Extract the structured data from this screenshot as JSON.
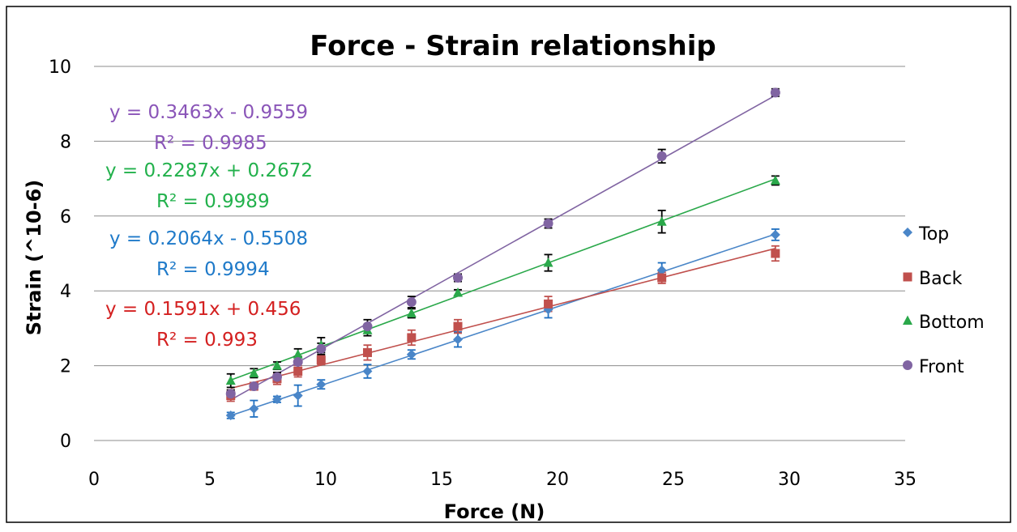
{
  "chart_data": {
    "type": "scatter",
    "title": "Force - Strain relationship",
    "xlabel": "Force (N)",
    "ylabel": "Strain (^10-6)",
    "xlim": [
      0,
      35
    ],
    "ylim": [
      0,
      10
    ],
    "x_ticks": [
      "0",
      "5",
      "10",
      "15",
      "20",
      "25",
      "30",
      "35"
    ],
    "y_ticks": [
      "0",
      "2",
      "4",
      "6",
      "8",
      "10"
    ],
    "grid": "horizontal",
    "legend_position": "right",
    "series": [
      {
        "name": "Top",
        "color": "#4a86c8",
        "marker": "diamond",
        "x": [
          5.9,
          6.9,
          7.9,
          8.8,
          9.8,
          11.8,
          13.7,
          15.7,
          19.6,
          24.5,
          29.4
        ],
        "y": [
          0.67,
          0.85,
          1.1,
          1.2,
          1.5,
          1.85,
          2.3,
          2.7,
          3.5,
          4.55,
          5.5
        ],
        "err": [
          0.08,
          0.22,
          0.08,
          0.28,
          0.12,
          0.18,
          0.12,
          0.2,
          0.22,
          0.2,
          0.15
        ],
        "trend": {
          "slope": 0.2064,
          "intercept": -0.5508
        },
        "equation": "y = 0.2064x - 0.5508",
        "r2": "R² = 0.9994"
      },
      {
        "name": "Back",
        "color": "#c0504d",
        "marker": "square",
        "x": [
          5.9,
          6.9,
          7.9,
          8.8,
          9.8,
          11.8,
          13.7,
          15.7,
          19.6,
          24.5,
          29.4
        ],
        "y": [
          1.2,
          1.45,
          1.65,
          1.85,
          2.15,
          2.35,
          2.75,
          3.05,
          3.65,
          4.35,
          5.0
        ],
        "err": [
          0.15,
          0.1,
          0.15,
          0.15,
          0.12,
          0.2,
          0.2,
          0.18,
          0.2,
          0.15,
          0.2
        ],
        "trend": {
          "slope": 0.1591,
          "intercept": 0.456
        },
        "equation": "y = 0.1591x + 0.456",
        "r2": "R² = 0.993"
      },
      {
        "name": "Bottom",
        "color": "#2aa84a",
        "marker": "triangle",
        "x": [
          5.9,
          6.9,
          7.9,
          8.8,
          9.8,
          11.8,
          13.7,
          15.7,
          19.6,
          24.5,
          29.4
        ],
        "y": [
          1.6,
          1.8,
          2.0,
          2.3,
          2.55,
          2.95,
          3.4,
          3.95,
          4.75,
          5.85,
          6.95
        ],
        "err": [
          0.18,
          0.12,
          0.1,
          0.15,
          0.2,
          0.15,
          0.12,
          0.08,
          0.22,
          0.3,
          0.12
        ],
        "trend": {
          "slope": 0.2287,
          "intercept": 0.2672
        },
        "equation": "y = 0.2287x + 0.2672",
        "r2": "R² = 0.9989"
      },
      {
        "name": "Front",
        "color": "#8064a2",
        "marker": "circle",
        "x": [
          5.9,
          6.9,
          7.9,
          8.8,
          9.8,
          11.8,
          13.7,
          15.7,
          19.6,
          24.5,
          29.4
        ],
        "y": [
          1.25,
          1.45,
          1.7,
          2.1,
          2.45,
          3.05,
          3.7,
          4.35,
          5.8,
          7.6,
          9.3
        ],
        "err": [
          0.1,
          0.1,
          0.12,
          0.15,
          0.15,
          0.18,
          0.15,
          0.1,
          0.12,
          0.18,
          0.1
        ],
        "trend": {
          "slope": 0.3463,
          "intercept": -0.9559
        },
        "equation": "y = 0.3463x - 0.9559",
        "r2": "R² = 0.9985"
      }
    ]
  }
}
